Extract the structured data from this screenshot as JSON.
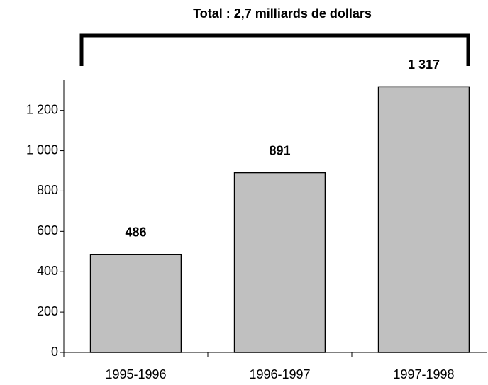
{
  "chart_data": {
    "type": "bar",
    "title": "Total : 2,7 milliards de dollars",
    "categories": [
      "1995-1996",
      "1996-1997",
      "1997-1998"
    ],
    "values": [
      486,
      891,
      1317
    ],
    "value_labels": [
      "486",
      "891",
      "1 317"
    ],
    "color": "#c0c0c0",
    "ylim": [
      0,
      1350
    ],
    "yticks": [
      0,
      200,
      400,
      600,
      800,
      {
        "value": 1000,
        "label": "1 000"
      },
      {
        "value": 1200,
        "label": "1 200"
      }
    ]
  }
}
